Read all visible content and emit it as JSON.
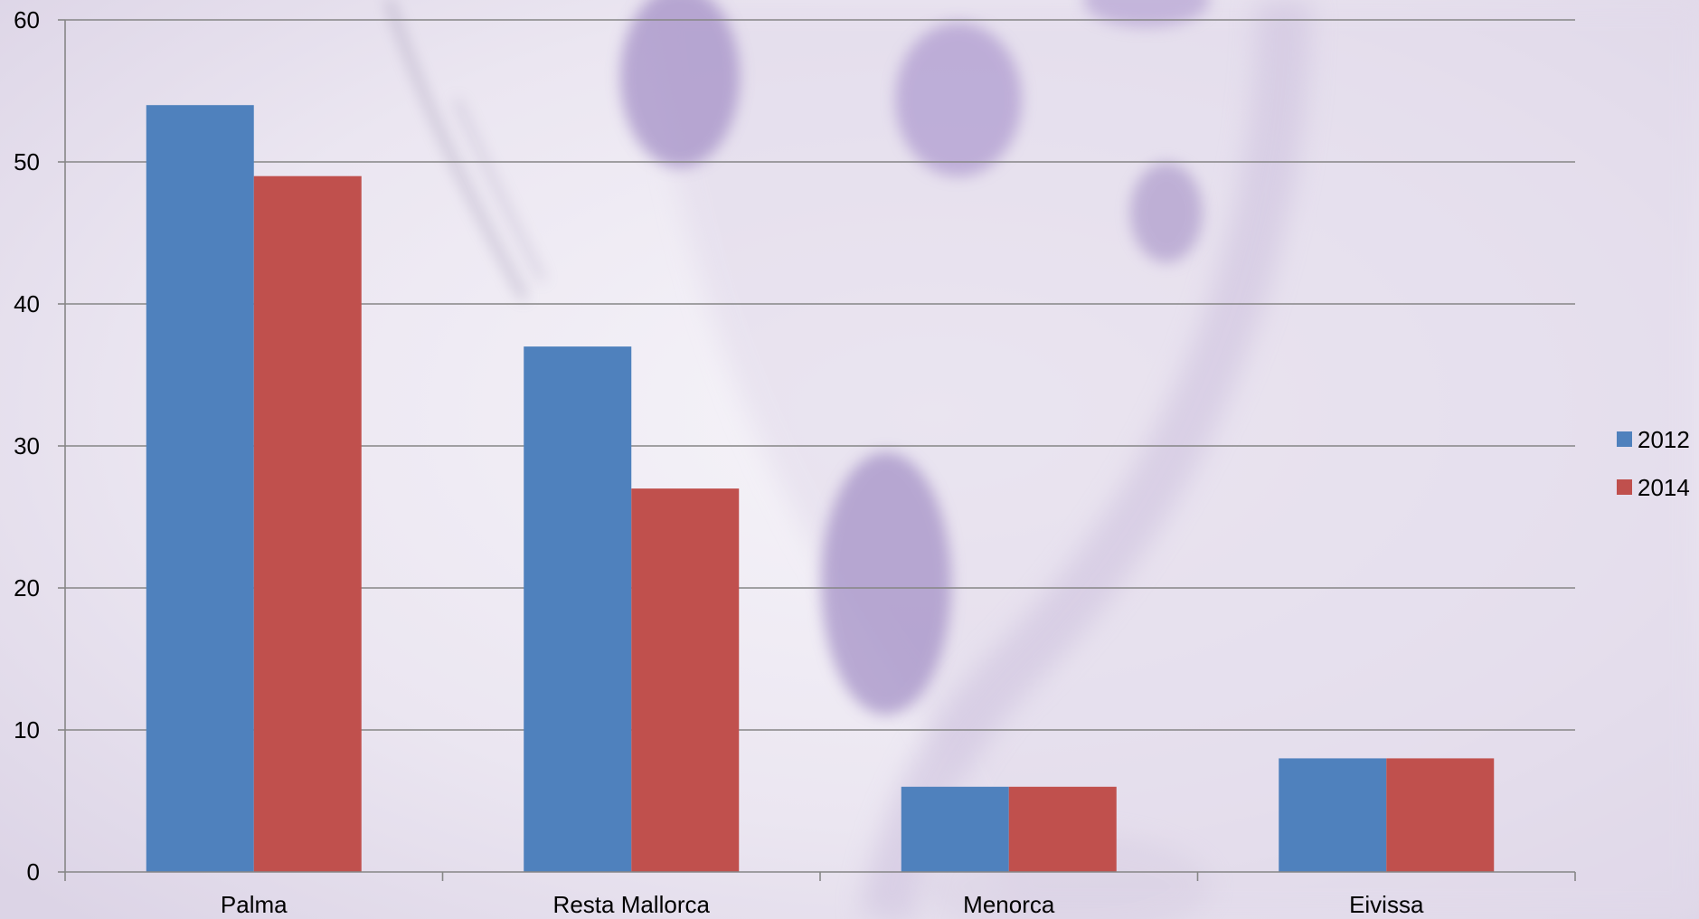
{
  "chart_data": {
    "type": "bar",
    "title": "",
    "xlabel": "",
    "ylabel": "",
    "categories": [
      "Palma",
      "Resta Mallorca",
      "Menorca",
      "Eivissa"
    ],
    "series": [
      {
        "name": "2012",
        "values": [
          54,
          37,
          6,
          8
        ],
        "color": "#4f81bd"
      },
      {
        "name": "2014",
        "values": [
          49,
          27,
          6,
          8
        ],
        "color": "#c0504d"
      }
    ],
    "ylim": [
      0,
      60
    ],
    "yticks": [
      0,
      10,
      20,
      30,
      40,
      50,
      60
    ],
    "grid": true,
    "legend_position": "right"
  }
}
